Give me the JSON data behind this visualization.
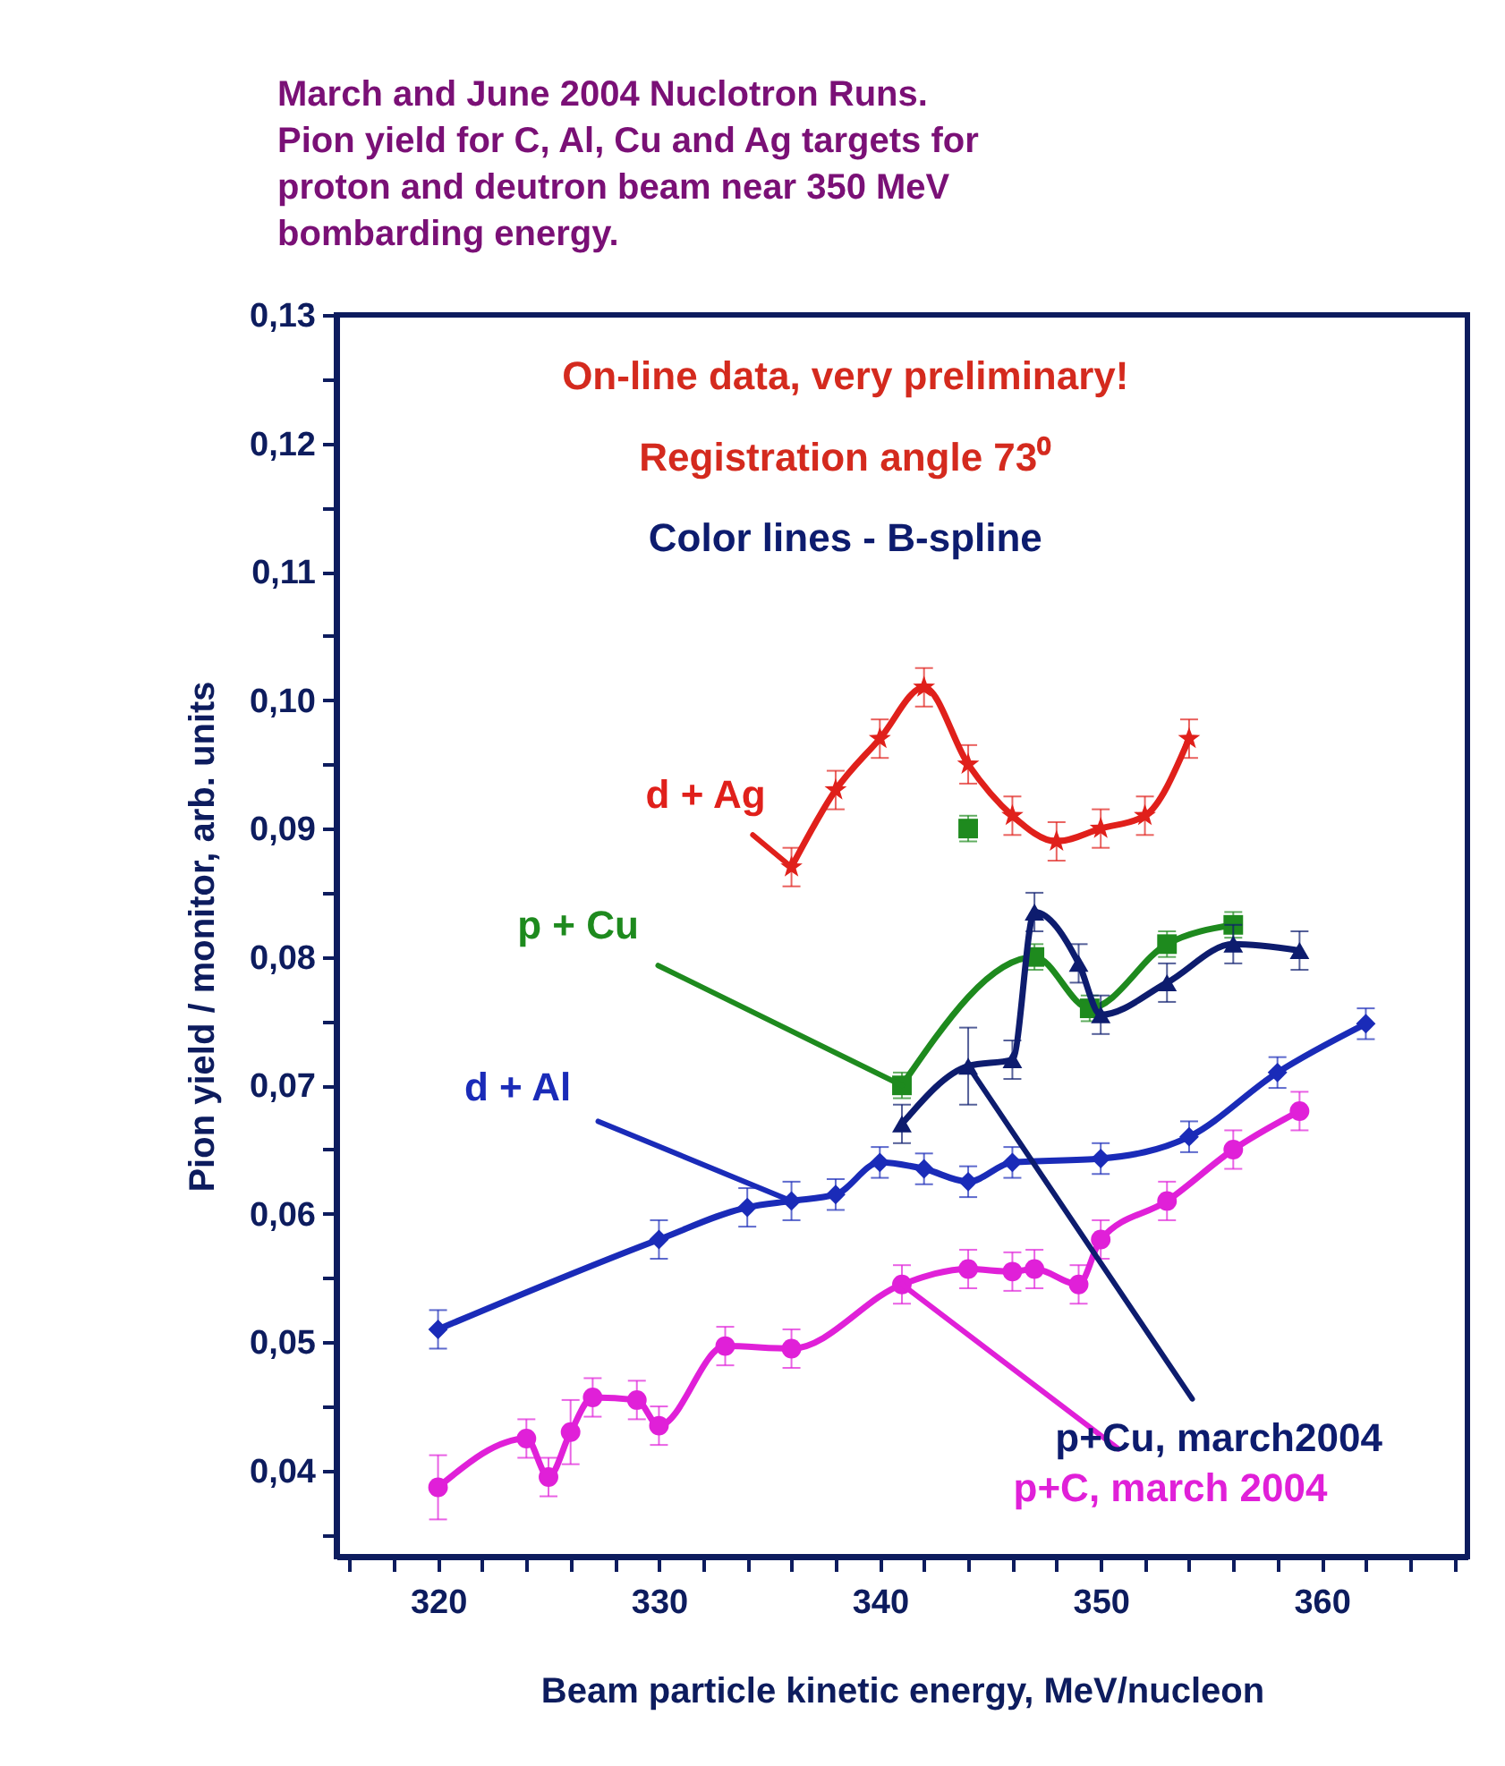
{
  "chart_data": {
    "type": "line",
    "title": "March and June 2004 Nuclotron Runs.\nPion yield for C, Al, Cu and Ag targets for\nproton and deutron beam near 350 MeV\nbombarding energy.",
    "xlabel": "Beam particle kinetic energy, MeV/nucleon",
    "ylabel": "Pion yield / monitor, arb. units",
    "xlim": [
      315.4,
      366.6
    ],
    "ylim": [
      0.0333,
      0.13
    ],
    "xticks": [
      {
        "value": 316,
        "label": null
      },
      {
        "value": 318,
        "label": null
      },
      320,
      {
        "value": 322,
        "label": null
      },
      {
        "value": 324,
        "label": null
      },
      {
        "value": 326,
        "label": null
      },
      {
        "value": 328,
        "label": null
      },
      330,
      {
        "value": 332,
        "label": null
      },
      {
        "value": 334,
        "label": null
      },
      {
        "value": 336,
        "label": null
      },
      {
        "value": 338,
        "label": null
      },
      340,
      {
        "value": 342,
        "label": null
      },
      {
        "value": 344,
        "label": null
      },
      {
        "value": 346,
        "label": null
      },
      {
        "value": 348,
        "label": null
      },
      350,
      {
        "value": 352,
        "label": null
      },
      {
        "value": 354,
        "label": null
      },
      {
        "value": 356,
        "label": null
      },
      {
        "value": 358,
        "label": null
      },
      360,
      {
        "value": 362,
        "label": null
      },
      {
        "value": 364,
        "label": null
      },
      {
        "value": 366,
        "label": null
      }
    ],
    "yticks": [
      {
        "value": 0.035,
        "label": null
      },
      {
        "value": 0.04,
        "label": "0,04"
      },
      {
        "value": 0.045,
        "label": null
      },
      {
        "value": 0.05,
        "label": "0,05"
      },
      {
        "value": 0.055,
        "label": null
      },
      {
        "value": 0.06,
        "label": "0,06"
      },
      {
        "value": 0.065,
        "label": null
      },
      {
        "value": 0.07,
        "label": "0,07"
      },
      {
        "value": 0.075,
        "label": null
      },
      {
        "value": 0.08,
        "label": "0,08"
      },
      {
        "value": 0.085,
        "label": null
      },
      {
        "value": 0.09,
        "label": "0,09"
      },
      {
        "value": 0.095,
        "label": null
      },
      {
        "value": 0.1,
        "label": "0,10"
      },
      {
        "value": 0.105,
        "label": null
      },
      {
        "value": 0.11,
        "label": "0,11"
      },
      {
        "value": 0.115,
        "label": null
      },
      {
        "value": 0.12,
        "label": "0,12"
      },
      {
        "value": 0.125,
        "label": null
      },
      {
        "value": 0.13,
        "label": "0,13"
      }
    ],
    "grid": false,
    "series": [
      {
        "type": "line",
        "marker": "star",
        "color": "#e0201b",
        "x": [
          336,
          338,
          340,
          342,
          344,
          346,
          348,
          350,
          352,
          354
        ],
        "values": [
          0.087,
          0.093,
          0.097,
          0.101,
          0.095,
          0.091,
          0.089,
          0.09,
          0.091,
          0.097
        ],
        "errors": [
          0.0015,
          0.0015,
          0.0015,
          0.0015,
          0.0015,
          0.0015,
          0.0015,
          0.0015,
          0.0015,
          0.0015
        ]
      },
      {
        "type": "line",
        "marker": "square",
        "color": "#1e8a1e",
        "x": [
          341,
          347,
          349.5,
          353,
          356
        ],
        "values": [
          0.07,
          0.08,
          0.076,
          0.081,
          0.0825
        ],
        "errors": [
          0.001,
          0.001,
          0.001,
          0.001,
          0.001
        ]
      },
      {
        "type": "scatter",
        "marker": "square",
        "color": "#1e8a1e",
        "x": [
          344
        ],
        "values": [
          0.09
        ],
        "errors": [
          0.001
        ]
      },
      {
        "type": "line",
        "marker": "diamond",
        "color": "#1a2bb8",
        "x": [
          320,
          330,
          334,
          336,
          338,
          340,
          342,
          344,
          346,
          350,
          354,
          358,
          362
        ],
        "values": [
          0.051,
          0.058,
          0.0605,
          0.061,
          0.0615,
          0.064,
          0.0635,
          0.0625,
          0.064,
          0.0643,
          0.066,
          0.071,
          0.0748
        ],
        "errors": [
          0.0015,
          0.0015,
          0.0015,
          0.0015,
          0.0012,
          0.0012,
          0.0012,
          0.0012,
          0.0012,
          0.0012,
          0.0012,
          0.0012,
          0.0012
        ]
      },
      {
        "type": "line",
        "marker": "triangle",
        "color": "#0d1c6e",
        "x": [
          341,
          344,
          346,
          347,
          349,
          350,
          353,
          356,
          359
        ],
        "values": [
          0.067,
          0.0715,
          0.072,
          0.0835,
          0.0795,
          0.0755,
          0.078,
          0.081,
          0.0805
        ],
        "errors": [
          0.0015,
          0.003,
          0.0015,
          0.0015,
          0.0015,
          0.0015,
          0.0015,
          0.0015,
          0.0015
        ]
      },
      {
        "type": "line",
        "marker": "circle",
        "color": "#e020d8",
        "x": [
          320,
          324,
          325,
          326,
          327,
          329,
          330,
          333,
          336,
          341,
          344,
          346,
          347,
          349,
          350,
          353,
          356,
          359
        ],
        "values": [
          0.0387,
          0.0425,
          0.0395,
          0.043,
          0.0457,
          0.0455,
          0.0435,
          0.0497,
          0.0495,
          0.0545,
          0.0557,
          0.0555,
          0.0557,
          0.0545,
          0.058,
          0.061,
          0.065,
          0.068
        ],
        "errors": [
          0.0025,
          0.0015,
          0.0015,
          0.0025,
          0.0015,
          0.0015,
          0.0015,
          0.0015,
          0.0015,
          0.0015,
          0.0015,
          0.0015,
          0.0015,
          0.0015,
          0.0015,
          0.0015,
          0.0015,
          0.0015
        ]
      }
    ],
    "annotations": [
      "On-line data, very preliminary!",
      "Registration angle 73⁰",
      "Color lines - B-spline",
      {
        "text": "d + Ag",
        "x": 336,
        "y": 0.087
      },
      {
        "text": "p + Cu",
        "x": 341,
        "y": 0.07
      },
      {
        "text": "d + Al",
        "x": 336,
        "y": 0.061
      },
      {
        "text": "p+Cu, march2004",
        "x": 344,
        "y": 0.0715
      },
      {
        "text": "p+C, march 2004",
        "x": 341,
        "y": 0.0545
      }
    ]
  }
}
